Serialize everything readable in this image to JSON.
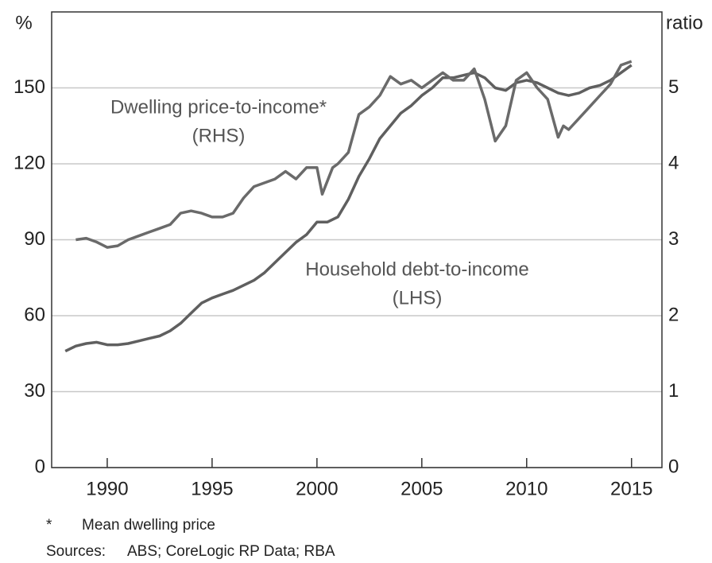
{
  "chart_data": {
    "type": "line",
    "y_unit": "%",
    "y2_unit": "ratio",
    "annotations": [
      "Dwelling price-to-income*",
      "(RHS)",
      "Household debt-to-income",
      "(LHS)"
    ],
    "footnote_marker": "*",
    "footnote": "Mean dwelling price",
    "sources_label": "Sources:",
    "sources": "ABS; CoreLogic RP Data; RBA",
    "xlim": [
      1987.35,
      2016.45
    ],
    "xticks": [
      1990,
      1995,
      2000,
      2005,
      2010,
      2015
    ],
    "ylim": [
      0,
      180
    ],
    "yticks": [
      0,
      30,
      60,
      90,
      120,
      150
    ],
    "y2lim": [
      0,
      6
    ],
    "y2ticks": [
      0,
      1,
      2,
      3,
      4,
      5
    ],
    "grid": true,
    "series": [
      {
        "name": "Household debt-to-income (LHS)",
        "color": "#5f5f5f",
        "x": [
          1988,
          1988.5,
          1989,
          1989.5,
          1990,
          1990.5,
          1991,
          1991.5,
          1992,
          1992.5,
          1993,
          1993.5,
          1994,
          1994.5,
          1995,
          1995.5,
          1996,
          1996.5,
          1997,
          1997.5,
          1998,
          1998.5,
          1999,
          1999.5,
          2000,
          2000.5,
          2001,
          2001.5,
          2002,
          2002.5,
          2003,
          2003.5,
          2004,
          2004.5,
          2005,
          2005.5,
          2006,
          2006.5,
          2007,
          2007.5,
          2008,
          2008.5,
          2009,
          2009.5,
          2010,
          2010.5,
          2011,
          2011.5,
          2012,
          2012.5,
          2013,
          2013.5,
          2014,
          2014.5,
          2015
        ],
        "values": [
          46,
          48,
          49,
          49.5,
          48.5,
          48.5,
          49,
          50,
          51,
          52,
          54,
          57,
          61,
          65,
          67,
          68.5,
          70,
          72,
          74,
          77,
          81,
          85,
          89,
          92,
          97,
          97,
          99,
          106,
          115,
          122,
          130,
          135,
          140,
          143,
          147,
          150,
          154,
          154,
          155,
          156,
          154,
          150,
          149,
          152,
          153,
          152,
          150,
          148,
          147,
          148,
          150,
          151,
          153,
          156,
          159
        ]
      },
      {
        "name": "Dwelling price-to-income (RHS)",
        "color": "#6a6a6a",
        "axis": "y2",
        "x": [
          1988.5,
          1989,
          1989.5,
          1990,
          1990.5,
          1991,
          1991.5,
          1992,
          1992.5,
          1993,
          1993.5,
          1994,
          1994.5,
          1995,
          1995.5,
          1996,
          1996.5,
          1997,
          1997.5,
          1998,
          1998.5,
          1999,
          1999.5,
          2000,
          2000.25,
          2000.75,
          2001,
          2001.5,
          2002,
          2002.5,
          2003,
          2003.5,
          2004,
          2004.5,
          2005,
          2005.5,
          2006,
          2006.5,
          2007,
          2007.5,
          2008,
          2008.5,
          2009,
          2009.5,
          2010,
          2010.5,
          2011,
          2011.5,
          2011.75,
          2012,
          2012.5,
          2013,
          2013.5,
          2014,
          2014.5,
          2015
        ],
        "values": [
          3.0,
          3.02,
          2.97,
          2.9,
          2.92,
          3.0,
          3.05,
          3.1,
          3.15,
          3.2,
          3.35,
          3.38,
          3.35,
          3.3,
          3.3,
          3.35,
          3.55,
          3.7,
          3.75,
          3.8,
          3.9,
          3.8,
          3.95,
          3.95,
          3.6,
          3.95,
          4.0,
          4.15,
          4.65,
          4.75,
          4.9,
          5.15,
          5.05,
          5.1,
          5.0,
          5.1,
          5.2,
          5.1,
          5.1,
          5.25,
          4.85,
          4.3,
          4.5,
          5.1,
          5.2,
          5.0,
          4.85,
          4.35,
          4.5,
          4.45,
          4.6,
          4.75,
          4.9,
          5.05,
          5.3,
          5.35
        ]
      }
    ]
  }
}
